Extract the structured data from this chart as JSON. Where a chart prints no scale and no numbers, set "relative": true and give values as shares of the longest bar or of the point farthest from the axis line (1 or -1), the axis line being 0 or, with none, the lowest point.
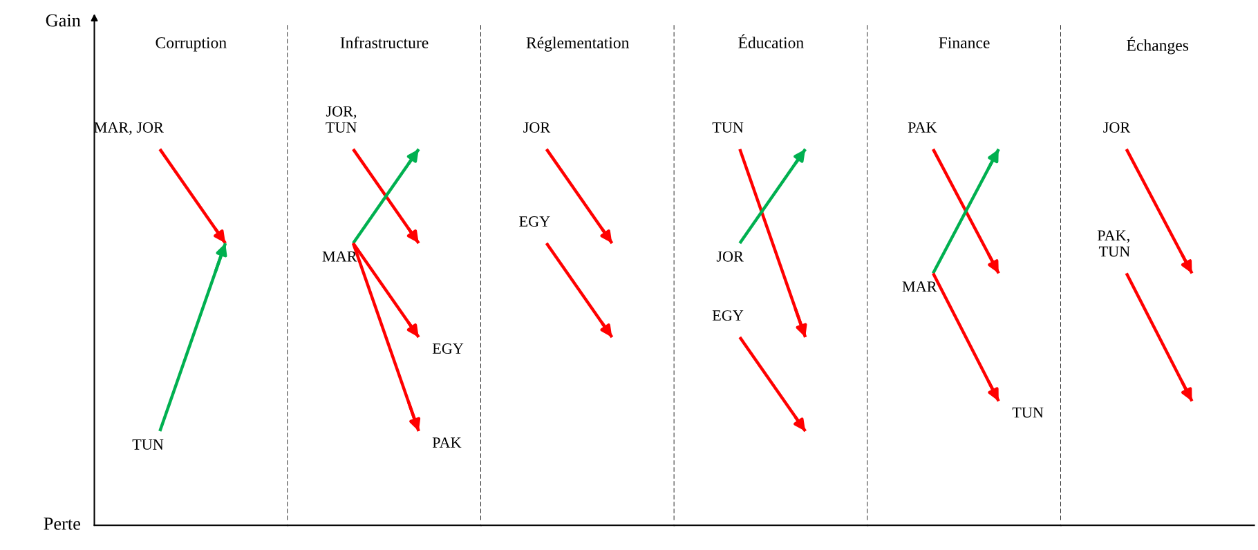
{
  "chart_data": [
    {
      "type": "line",
      "title": "Corruption",
      "relative": true,
      "categories": [
        null,
        null
      ],
      "annotations": [
        "Gain",
        "Perte"
      ],
      "series": [
        {
          "name": "MAR, JOR",
          "color": "#ff0000",
          "values": [
            1,
            0.75
          ]
        },
        {
          "name": "TUN",
          "color": "#00b050",
          "values": [
            0.25,
            0.75
          ]
        }
      ]
    },
    {
      "type": "line",
      "title": "Infrastructure",
      "relative": true,
      "categories": [
        null,
        null
      ],
      "series": [
        {
          "name": "JOR,\nTUN",
          "color": "#ff0000",
          "values": [
            1,
            0.75
          ]
        },
        {
          "name": "MAR",
          "color": "#00b050",
          "values": [
            0.75,
            1
          ]
        },
        {
          "name": "EGY",
          "color": "#ff0000",
          "values": [
            0.75,
            0.5
          ]
        },
        {
          "name": "PAK",
          "color": "#ff0000",
          "values": [
            0.75,
            0.25
          ]
        }
      ]
    },
    {
      "type": "line",
      "title": "Réglementation",
      "relative": true,
      "categories": [
        null,
        null
      ],
      "series": [
        {
          "name": "JOR",
          "color": "#ff0000",
          "values": [
            1,
            0.75
          ]
        },
        {
          "name": "EGY",
          "color": "#ff0000",
          "values": [
            0.75,
            0.5
          ]
        }
      ]
    },
    {
      "type": "line",
      "title": "Éducation",
      "relative": true,
      "categories": [
        null,
        null
      ],
      "series": [
        {
          "name": "TUN",
          "color": "#ff0000",
          "values": [
            1,
            0.5
          ]
        },
        {
          "name": "JOR",
          "color": "#00b050",
          "values": [
            0.75,
            1
          ]
        },
        {
          "name": "EGY",
          "color": "#ff0000",
          "values": [
            0.5,
            0.25
          ]
        }
      ]
    },
    {
      "type": "line",
      "title": "Finance",
      "relative": true,
      "categories": [
        null,
        null
      ],
      "series": [
        {
          "name": "PAK",
          "color": "#ff0000",
          "values": [
            1,
            0.67
          ]
        },
        {
          "name": "MAR",
          "color": "#00b050",
          "values": [
            0.67,
            1
          ]
        },
        {
          "name": "TUN",
          "color": "#ff0000",
          "values": [
            0.67,
            0.33
          ]
        }
      ]
    },
    {
      "type": "line",
      "title": "Échanges",
      "relative": true,
      "categories": [
        null,
        null
      ],
      "series": [
        {
          "name": "JOR",
          "color": "#ff0000",
          "values": [
            1,
            0.67
          ]
        },
        {
          "name": "PAK,\nTUN",
          "color": "#ff0000",
          "values": [
            0.67,
            0.33
          ]
        }
      ]
    }
  ]
}
